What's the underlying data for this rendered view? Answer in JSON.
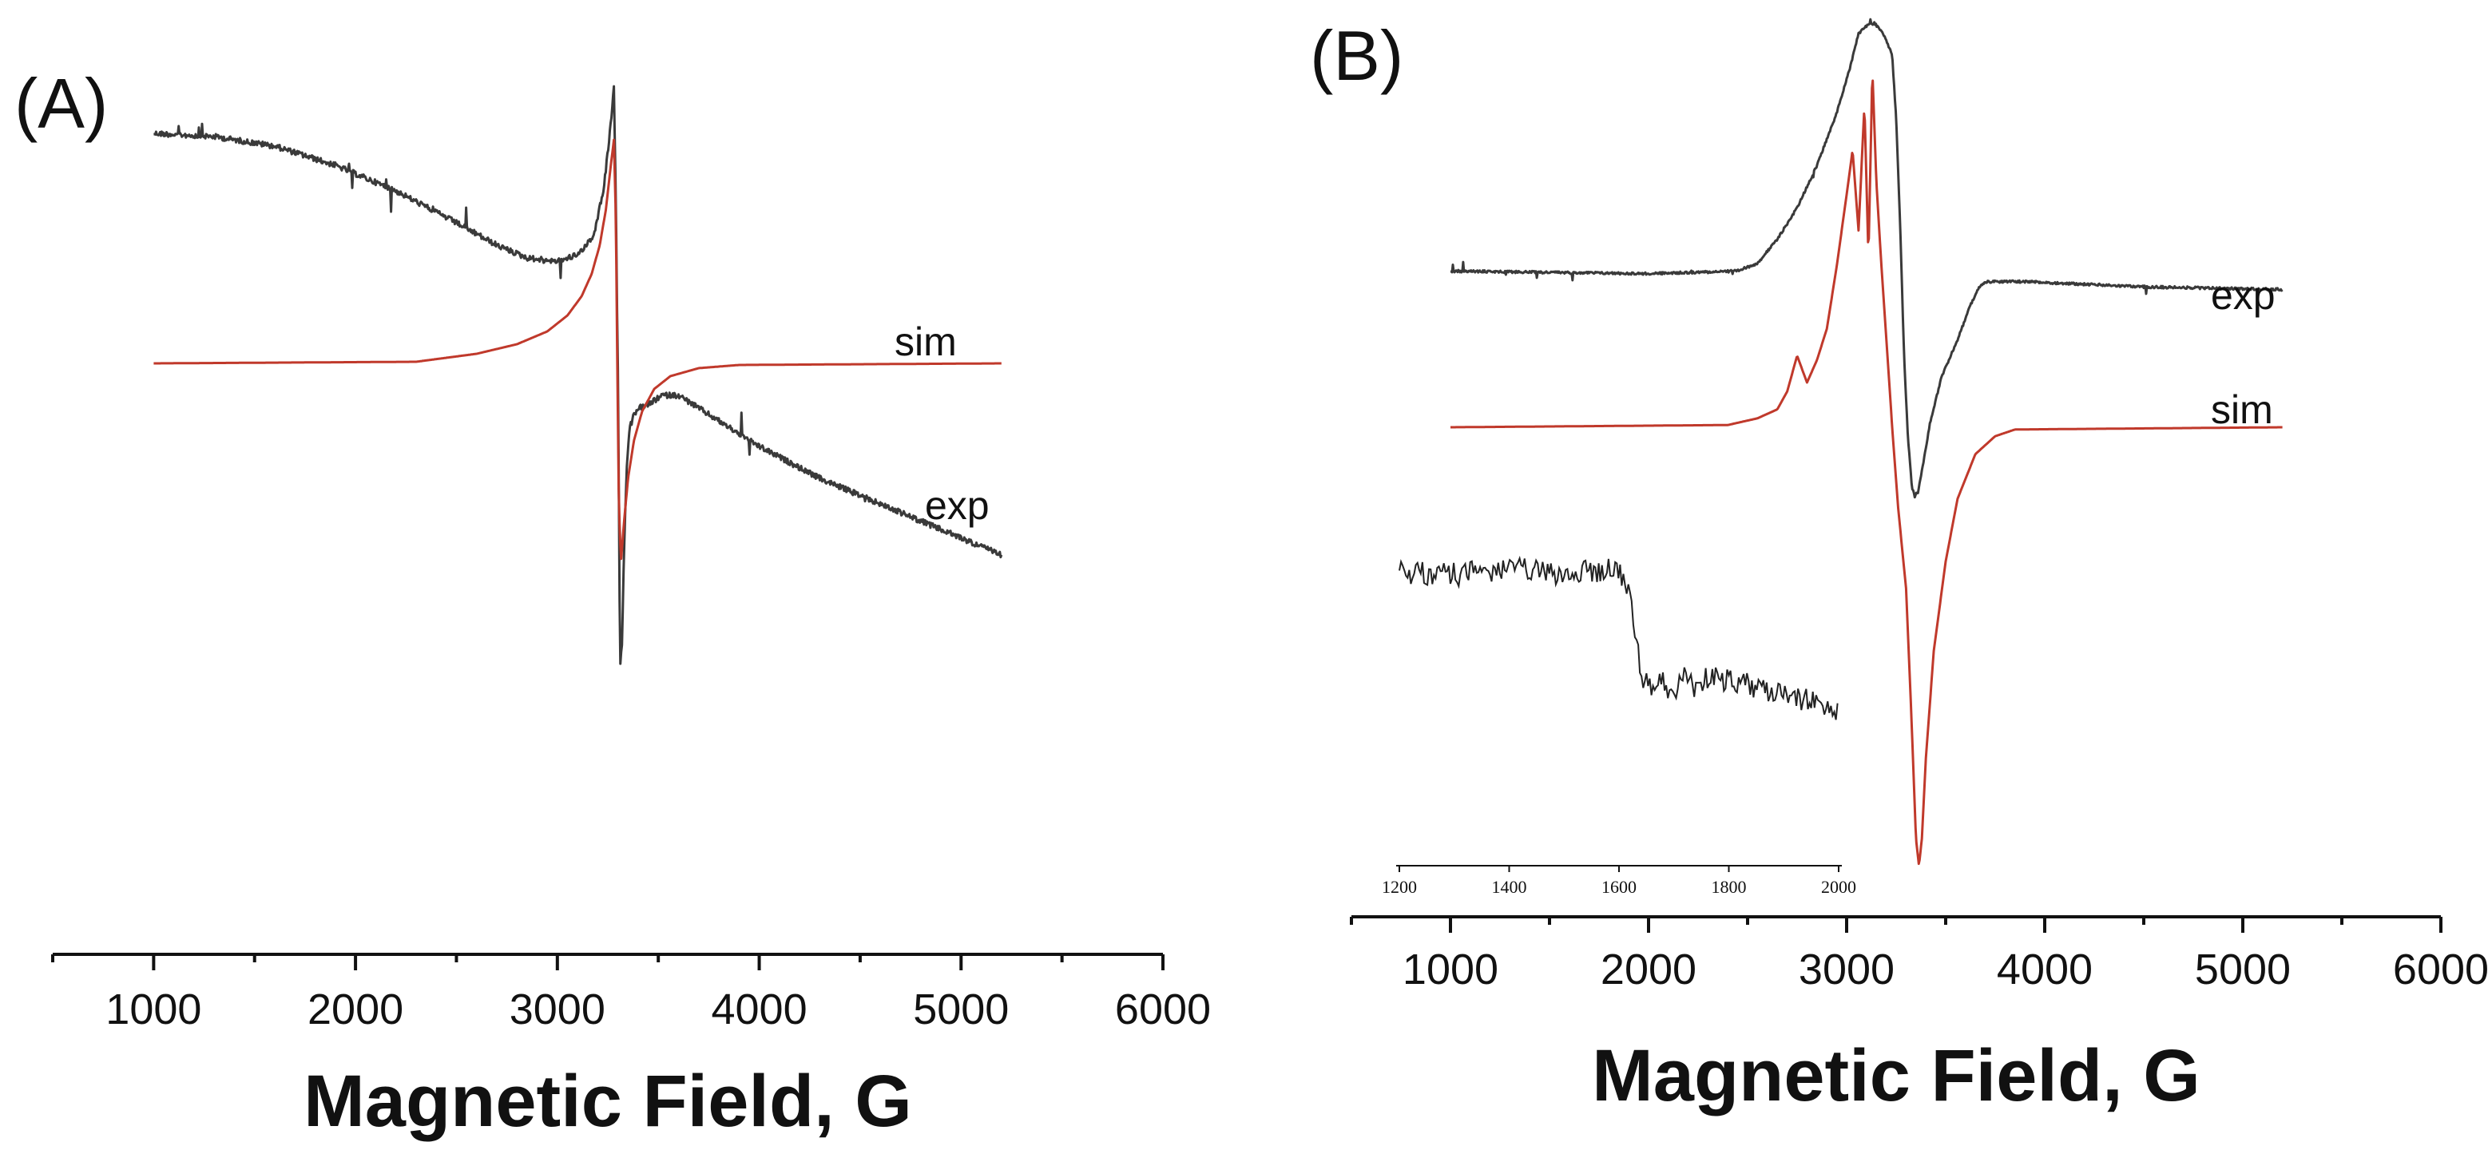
{
  "colors": {
    "exp": "#3a3a3a",
    "sim": "#c0392b",
    "axis": "#111111"
  },
  "chart_data": [
    {
      "type": "line",
      "panel": "(A)",
      "xlabel": "Magnetic Field, G",
      "ylabel": "",
      "xlim": [
        500,
        6000
      ],
      "xticks": [
        1000,
        2000,
        3000,
        4000,
        5000,
        6000
      ],
      "grid": false,
      "series": [
        {
          "name": "exp",
          "color": "#3a3a3a",
          "noisy": true,
          "x": [
            1000,
            1300,
            1600,
            1900,
            2200,
            2500,
            2700,
            2850,
            3000,
            3100,
            3180,
            3230,
            3260,
            3280,
            3290,
            3300,
            3305,
            3310,
            3320,
            3330,
            3345,
            3360,
            3380,
            3400,
            3450,
            3520,
            3600,
            3800,
            4000,
            4300,
            4600,
            4900,
            5200
          ],
          "y": [
            0.72,
            0.71,
            0.68,
            0.62,
            0.54,
            0.44,
            0.37,
            0.33,
            0.32,
            0.34,
            0.4,
            0.55,
            0.72,
            0.86,
            0.5,
            -0.05,
            -0.4,
            -0.96,
            -0.88,
            -0.6,
            -0.3,
            -0.2,
            -0.16,
            -0.14,
            -0.13,
            -0.1,
            -0.1,
            -0.18,
            -0.26,
            -0.36,
            -0.44,
            -0.52,
            -0.6
          ]
        },
        {
          "name": "sim",
          "color": "#c0392b",
          "noisy": false,
          "x": [
            1000,
            2300,
            2600,
            2800,
            2950,
            3050,
            3120,
            3170,
            3210,
            3240,
            3265,
            3280,
            3290,
            3297,
            3305,
            3315,
            3330,
            3350,
            3380,
            3420,
            3480,
            3560,
            3700,
            3900,
            5200
          ],
          "y": [
            0,
            0.005,
            0.03,
            0.06,
            0.1,
            0.15,
            0.21,
            0.28,
            0.37,
            0.48,
            0.62,
            0.7,
            0.45,
            0.0,
            -0.45,
            -0.62,
            -0.5,
            -0.36,
            -0.24,
            -0.15,
            -0.08,
            -0.04,
            -0.015,
            -0.005,
            0
          ]
        }
      ],
      "annotations": [
        "sim",
        "exp"
      ]
    },
    {
      "type": "line",
      "panel": "(B)",
      "xlabel": "Magnetic Field, G",
      "ylabel": "",
      "xlim": [
        500,
        6000
      ],
      "xticks": [
        1000,
        2000,
        3000,
        4000,
        5000,
        6000
      ],
      "grid": false,
      "series": [
        {
          "name": "exp",
          "color": "#3a3a3a",
          "noisy": true,
          "x": [
            1000,
            2000,
            2450,
            2550,
            2650,
            2750,
            2850,
            2950,
            3020,
            3060,
            3100,
            3140,
            3180,
            3230,
            3250,
            3270,
            3290,
            3310,
            3330,
            3345,
            3360,
            3380,
            3420,
            3480,
            3560,
            3620,
            3660,
            3700,
            3760,
            3900,
            4500,
            5200
          ],
          "y": [
            0.02,
            0.01,
            0.02,
            0.05,
            0.14,
            0.26,
            0.42,
            0.62,
            0.8,
            0.92,
            0.95,
            0.96,
            0.93,
            0.84,
            0.6,
            0.2,
            -0.3,
            -0.62,
            -0.8,
            -0.83,
            -0.82,
            -0.74,
            -0.56,
            -0.38,
            -0.24,
            -0.12,
            -0.05,
            -0.02,
            -0.02,
            -0.02,
            -0.04,
            -0.05
          ]
        },
        {
          "name": "sim",
          "color": "#c0392b",
          "noisy": false,
          "x": [
            1000,
            2400,
            2550,
            2650,
            2700,
            2750,
            2800,
            2850,
            2900,
            2950,
            3000,
            3030,
            3060,
            3090,
            3110,
            3130,
            3150,
            3170,
            3200,
            3230,
            3260,
            3300,
            3330,
            3350,
            3365,
            3380,
            3400,
            3440,
            3500,
            3560,
            3650,
            3750,
            3850,
            5200
          ],
          "y": [
            0,
            0.005,
            0.02,
            0.04,
            0.08,
            0.16,
            0.1,
            0.15,
            0.22,
            0.36,
            0.52,
            0.62,
            0.44,
            0.72,
            0.38,
            0.8,
            0.55,
            0.4,
            0.2,
            0.0,
            -0.18,
            -0.36,
            -0.68,
            -0.92,
            -0.98,
            -0.92,
            -0.74,
            -0.5,
            -0.3,
            -0.16,
            -0.06,
            -0.02,
            -0.005,
            0
          ]
        }
      ],
      "annotations": [
        "exp",
        "sim"
      ],
      "inset": {
        "type": "line",
        "xlim": [
          1200,
          2000
        ],
        "xticks": [
          1200,
          1400,
          1600,
          1800,
          2000
        ],
        "noisy": true,
        "x": [
          1200,
          1300,
          1400,
          1500,
          1550,
          1600,
          1620,
          1640,
          1660,
          1680,
          1700,
          1720,
          1740,
          1760,
          1800,
          1850,
          1900,
          1950,
          2000
        ],
        "y": [
          0.8,
          0.78,
          0.82,
          0.78,
          0.8,
          0.82,
          0.6,
          0.1,
          -0.05,
          0.05,
          -0.1,
          0.12,
          -0.02,
          0.06,
          0.05,
          0.0,
          -0.06,
          -0.1,
          -0.16
        ]
      }
    }
  ]
}
